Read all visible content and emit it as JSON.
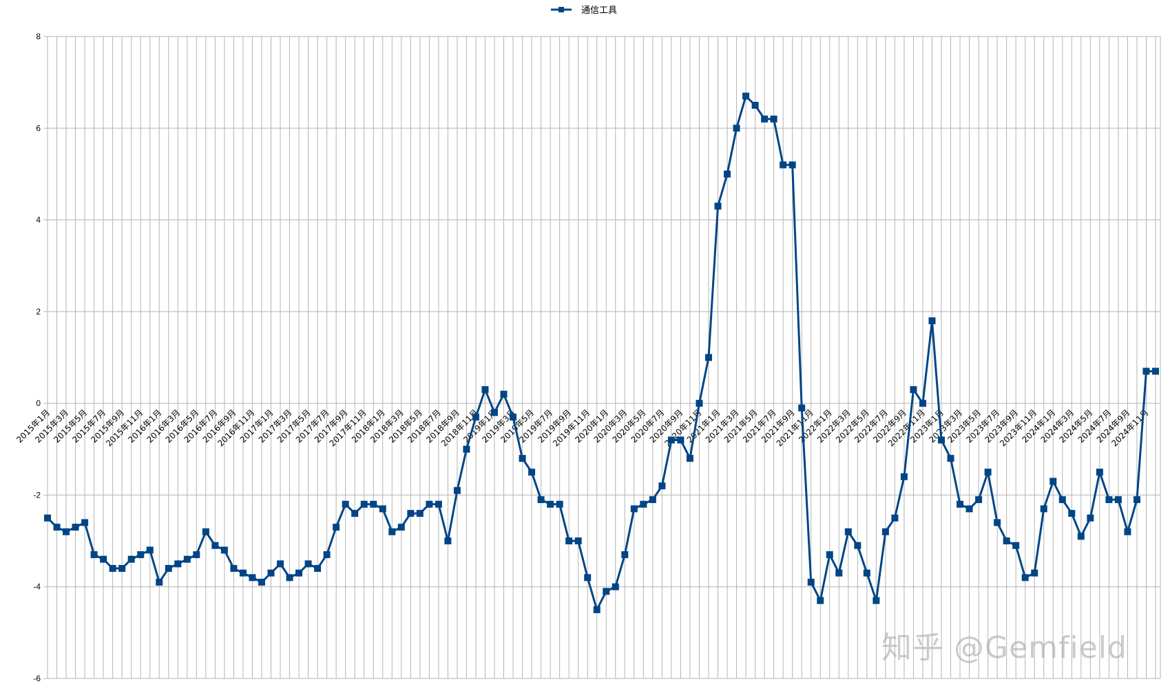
{
  "legend": {
    "label": "通信工具",
    "color": "#004586"
  },
  "watermark": "知乎 @Gemfield",
  "chart_data": {
    "type": "line",
    "title": "",
    "xlabel": "",
    "ylabel": "",
    "ylim": [
      -6,
      8
    ],
    "yticks": [
      8,
      6,
      4,
      2,
      0,
      -2,
      -4,
      -6
    ],
    "grid": true,
    "legend_position": "top",
    "series": [
      {
        "name": "通信工具",
        "color": "#004586",
        "marker": "square",
        "values": [
          -2.5,
          -2.7,
          -2.8,
          -2.7,
          -2.6,
          -3.3,
          -3.4,
          -3.6,
          -3.6,
          -3.4,
          -3.3,
          -3.2,
          -3.9,
          -3.6,
          -3.5,
          -3.4,
          -3.3,
          -2.8,
          -3.1,
          -3.2,
          -3.6,
          -3.7,
          -3.8,
          -3.9,
          -3.7,
          -3.5,
          -3.8,
          -3.7,
          -3.5,
          -3.6,
          -3.3,
          -2.7,
          -2.2,
          -2.4,
          -2.2,
          -2.2,
          -2.3,
          -2.8,
          -2.7,
          -2.4,
          -2.4,
          -2.2,
          -2.2,
          -3.0,
          -1.9,
          -1.0,
          -0.3,
          0.3,
          -0.2,
          0.2,
          -0.3,
          -1.2,
          -1.5,
          -2.1,
          -2.2,
          -2.2,
          -3.0,
          -3.0,
          -3.8,
          -4.5,
          -4.1,
          -4.0,
          -3.3,
          -2.3,
          -2.2,
          -2.1,
          -1.8,
          -0.8,
          -0.8,
          -1.2,
          0.0,
          1.0,
          4.3,
          5.0,
          6.0,
          6.7,
          6.5,
          6.2,
          6.2,
          5.2,
          5.2,
          -0.1,
          -3.9,
          -4.3,
          -3.3,
          -3.7,
          -2.8,
          -3.1,
          -3.7,
          -4.3,
          -2.8,
          -2.5,
          -1.6,
          0.3,
          0.0,
          1.8,
          -0.8,
          -1.2,
          -2.2,
          -2.3,
          -2.1,
          -1.5,
          -2.6,
          -3.0,
          -3.1,
          -3.8,
          -3.7,
          -2.3,
          -1.7,
          -2.1,
          -2.4,
          -2.9,
          -2.5,
          -1.5,
          -2.1,
          -2.1,
          -2.8,
          -2.1,
          0.7,
          0.7
        ]
      }
    ],
    "x_start": "2015年1月",
    "x_end": "2024年12月",
    "x_label_every": 2,
    "x_label_format": "{year}年{month}月"
  }
}
